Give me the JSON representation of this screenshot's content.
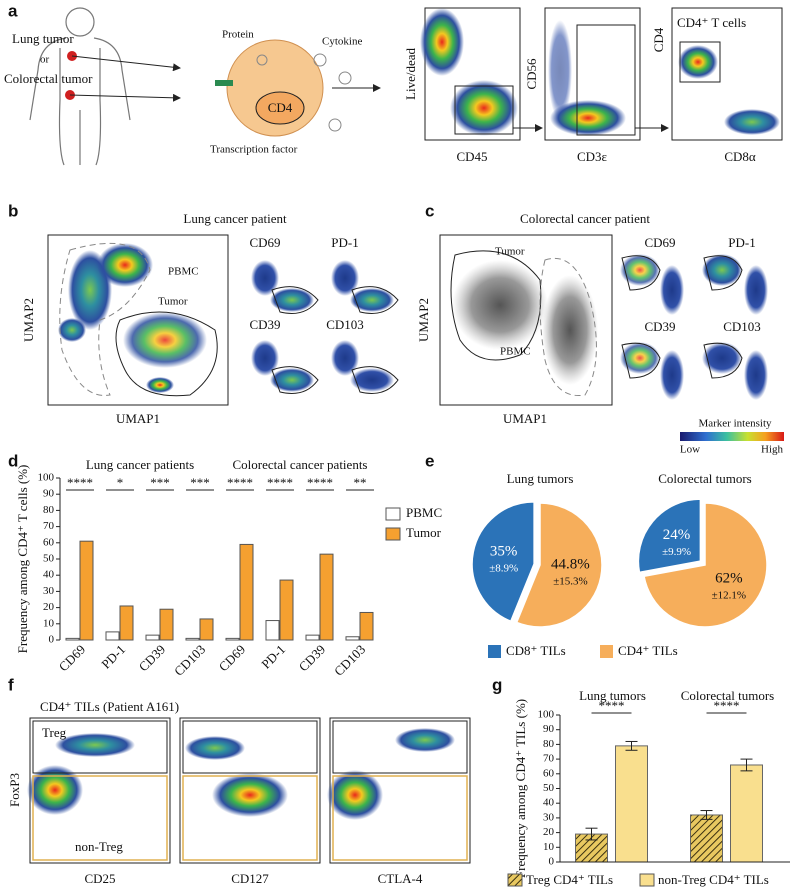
{
  "panel_labels": [
    "a",
    "b",
    "c",
    "d",
    "e",
    "f",
    "g"
  ],
  "panel_a": {
    "labels": [
      "Lung tumor",
      "or",
      "Colorectal tumor",
      "Protein",
      "Cytokine",
      "CD4",
      "Transcription factor"
    ],
    "plots": [
      {
        "y": "Live/dead",
        "x": "CD45"
      },
      {
        "y": "CD56",
        "x": "CD3ε"
      },
      {
        "y": "CD4",
        "x": "CD8α",
        "gate": "CD4⁺ T cells"
      }
    ]
  },
  "panel_b": {
    "title": "Lung cancer patient",
    "ylabel": "UMAP2",
    "xlabel": "UMAP1",
    "regions": [
      "PBMC",
      "Tumor"
    ],
    "markers": [
      "CD69",
      "PD-1",
      "CD39",
      "CD103"
    ]
  },
  "panel_c": {
    "title": "Colorectal cancer patient",
    "ylabel": "UMAP2",
    "xlabel": "UMAP1",
    "regions": [
      "Tumor",
      "PBMC"
    ],
    "markers": [
      "CD69",
      "PD-1",
      "CD39",
      "CD103"
    ],
    "colorbar": {
      "title": "Marker intensity",
      "low": "Low",
      "high": "High"
    }
  },
  "panel_f": {
    "title": "CD4⁺ TILs (Patient A161)",
    "ylabel": "FoxP3",
    "gates": [
      "Treg",
      "non-Treg"
    ],
    "xlabels": [
      "CD25",
      "CD127",
      "CTLA-4"
    ]
  },
  "chart_data": [
    {
      "type": "bar",
      "ylabel": "Frequency among CD4⁺ T cells (%)",
      "group_labels": [
        "Lung cancer patients",
        "Colorectal cancer patients"
      ],
      "categories": [
        "CD69",
        "PD-1",
        "CD39",
        "CD103",
        "CD69",
        "PD-1",
        "CD39",
        "CD103"
      ],
      "series": [
        {
          "name": "PBMC",
          "color": "#ffffff",
          "values": [
            1,
            5,
            3,
            1,
            1,
            12,
            3,
            2
          ]
        },
        {
          "name": "Tumor",
          "color": "#f5a030",
          "values": [
            61,
            21,
            19,
            13,
            59,
            37,
            53,
            17
          ]
        }
      ],
      "significance": [
        "****",
        "*",
        "***",
        "***",
        "****",
        "****",
        "****",
        "**"
      ],
      "ylim": [
        0,
        100
      ],
      "yticks": [
        0,
        10,
        20,
        30,
        40,
        50,
        60,
        70,
        80,
        90,
        100
      ]
    },
    {
      "type": "pie",
      "title": "Lung tumors",
      "categories": [
        "CD8⁺ TILs",
        "CD4⁺ TILs"
      ],
      "colors": [
        "#2b73b8",
        "#f6ae5b"
      ],
      "values": [
        35,
        44.8
      ],
      "value_labels": [
        "35%",
        "44.8%"
      ],
      "errors": [
        8.9,
        15.3
      ],
      "error_labels": [
        "±8.9%",
        "±15.3%"
      ]
    },
    {
      "type": "pie",
      "title": "Colorectal tumors",
      "categories": [
        "CD8⁺ TILs",
        "CD4⁺ TILs"
      ],
      "colors": [
        "#2b73b8",
        "#f6ae5b"
      ],
      "values": [
        24,
        62
      ],
      "value_labels": [
        "24%",
        "62%"
      ],
      "errors": [
        9.9,
        12.1
      ],
      "error_labels": [
        "±9.9%",
        "±12.1%"
      ]
    },
    {
      "type": "bar",
      "ylabel": "Frequency among CD4⁺ TILs (%)",
      "categories": [
        "Lung tumors",
        "Colorectal tumors"
      ],
      "series": [
        {
          "name": "Treg CD4⁺ TILs",
          "color": "#e8c860",
          "hatch": true,
          "values": [
            19,
            32
          ],
          "errors": [
            4,
            3
          ]
        },
        {
          "name": "non-Treg CD4⁺ TILs",
          "color": "#f9df8e",
          "values": [
            79,
            66
          ],
          "errors": [
            3,
            4
          ]
        }
      ],
      "significance": [
        "****",
        "****"
      ],
      "ylim": [
        0,
        100
      ],
      "yticks": [
        0,
        10,
        20,
        30,
        40,
        50,
        60,
        70,
        80,
        90,
        100
      ]
    }
  ]
}
